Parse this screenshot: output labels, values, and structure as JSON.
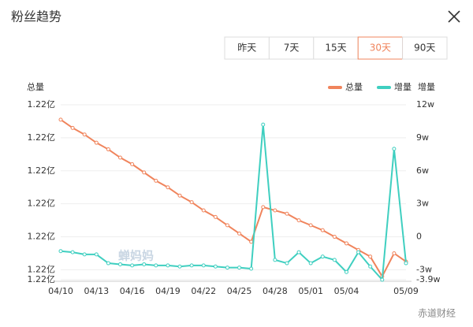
{
  "header": {
    "title": "粉丝趋势"
  },
  "tabs": [
    "昨天",
    "7天",
    "15天",
    "30天",
    "90天"
  ],
  "active_tab": 3,
  "watermarks": [
    "蝉妈妈",
    "赤道财经"
  ],
  "chart_data": {
    "type": "line",
    "y_label": "总量",
    "y2_label": "增量",
    "categories": [
      "04/10",
      null,
      null,
      "04/13",
      null,
      null,
      "04/16",
      null,
      null,
      "04/19",
      null,
      null,
      "04/22",
      null,
      null,
      "04/25",
      null,
      null,
      "04/28",
      null,
      null,
      "05/01",
      null,
      null,
      "05/04",
      null,
      null,
      null,
      null,
      "05/09"
    ],
    "series": [
      {
        "name": "总量",
        "color": "#f0845c",
        "values": [
          122111000,
          122106000,
          122102000,
          122097000,
          122093000,
          122088000,
          122084000,
          122079000,
          122074000,
          122070000,
          122065000,
          122061000,
          122056000,
          122052000,
          122047000,
          122042000,
          122037000,
          122058000,
          122056000,
          122054000,
          122050000,
          122047000,
          122044000,
          122040000,
          122036000,
          122032000,
          122028000,
          122016000,
          122030000,
          122025000
        ]
      },
      {
        "name": "增量",
        "color": "#3fcfc0",
        "axis": "y2",
        "values": [
          -13000,
          -14000,
          -16000,
          -16000,
          -24000,
          -25000,
          -26000,
          -25000,
          -26000,
          -26000,
          -27000,
          -26000,
          -26000,
          -27000,
          -28000,
          -28000,
          -29000,
          102000,
          -21000,
          -24000,
          -14000,
          -24000,
          -18000,
          -21000,
          -32000,
          -14000,
          -27000,
          -39000,
          80000,
          -24000
        ]
      }
    ],
    "ylim": [
      122014000,
      122120000
    ],
    "yticks": [
      {
        "value": 122120000,
        "label": "1.22亿"
      },
      {
        "value": 122100000,
        "label": "1.22亿"
      },
      {
        "value": 122080000,
        "label": "1.22亿"
      },
      {
        "value": 122060000,
        "label": "1.22亿"
      },
      {
        "value": 122040000,
        "label": "1.22亿"
      },
      {
        "value": 122020000,
        "label": "1.22亿"
      },
      {
        "value": 122014000,
        "label": "1.22亿"
      }
    ],
    "y2lim": [
      -39000,
      120000
    ],
    "y2ticks": [
      {
        "value": 120000,
        "label": "12w"
      },
      {
        "value": 90000,
        "label": "9w"
      },
      {
        "value": 60000,
        "label": "6w"
      },
      {
        "value": 30000,
        "label": "3w"
      },
      0,
      {
        "value": -30000,
        "label": "-3w"
      },
      {
        "value": -39000,
        "label": "-3.9w"
      }
    ],
    "grid": true,
    "legend": "top-right"
  }
}
